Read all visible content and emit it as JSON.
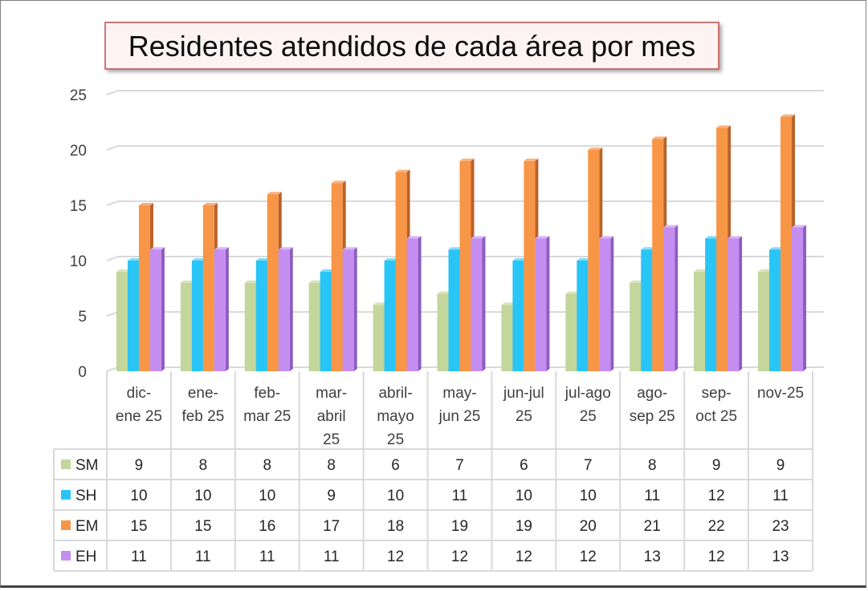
{
  "chart_data": {
    "type": "bar",
    "title": "Residentes atendidos de cada área por mes",
    "xlabel": "",
    "ylabel": "",
    "ylim": [
      0,
      25
    ],
    "yticks": [
      0,
      5,
      10,
      15,
      20,
      25
    ],
    "grid": true,
    "legend": "data-table-left",
    "categories": [
      [
        "dic-",
        "ene 25"
      ],
      [
        "ene-",
        "feb 25"
      ],
      [
        "feb-",
        "mar 25"
      ],
      [
        "mar-",
        "abril",
        "25"
      ],
      [
        "abril-",
        "mayo",
        "25"
      ],
      [
        "may-",
        "jun 25"
      ],
      [
        "jun-jul",
        "25"
      ],
      [
        "jul-ago",
        "25"
      ],
      [
        "ago-",
        "sep 25"
      ],
      [
        "sep-",
        "oct 25"
      ],
      [
        "nov-25"
      ]
    ],
    "series": [
      {
        "name": "SM",
        "color": "#c3d69b",
        "side": "#9bb86a",
        "top": "#d7e4bd",
        "values": [
          9,
          8,
          8,
          8,
          6,
          7,
          6,
          7,
          8,
          9,
          9
        ]
      },
      {
        "name": "SH",
        "color": "#29c5f6",
        "side": "#1496c8",
        "top": "#7fdcfa",
        "values": [
          10,
          10,
          10,
          9,
          10,
          11,
          10,
          10,
          11,
          12,
          11
        ]
      },
      {
        "name": "EM",
        "color": "#f79646",
        "side": "#b9622a",
        "top": "#f9b383",
        "values": [
          15,
          15,
          16,
          17,
          18,
          19,
          19,
          20,
          21,
          22,
          23
        ]
      },
      {
        "name": "EH",
        "color": "#c48ef0",
        "side": "#8f5cc0",
        "top": "#dab5f6",
        "values": [
          11,
          11,
          11,
          11,
          12,
          12,
          12,
          12,
          13,
          12,
          13
        ]
      }
    ]
  }
}
